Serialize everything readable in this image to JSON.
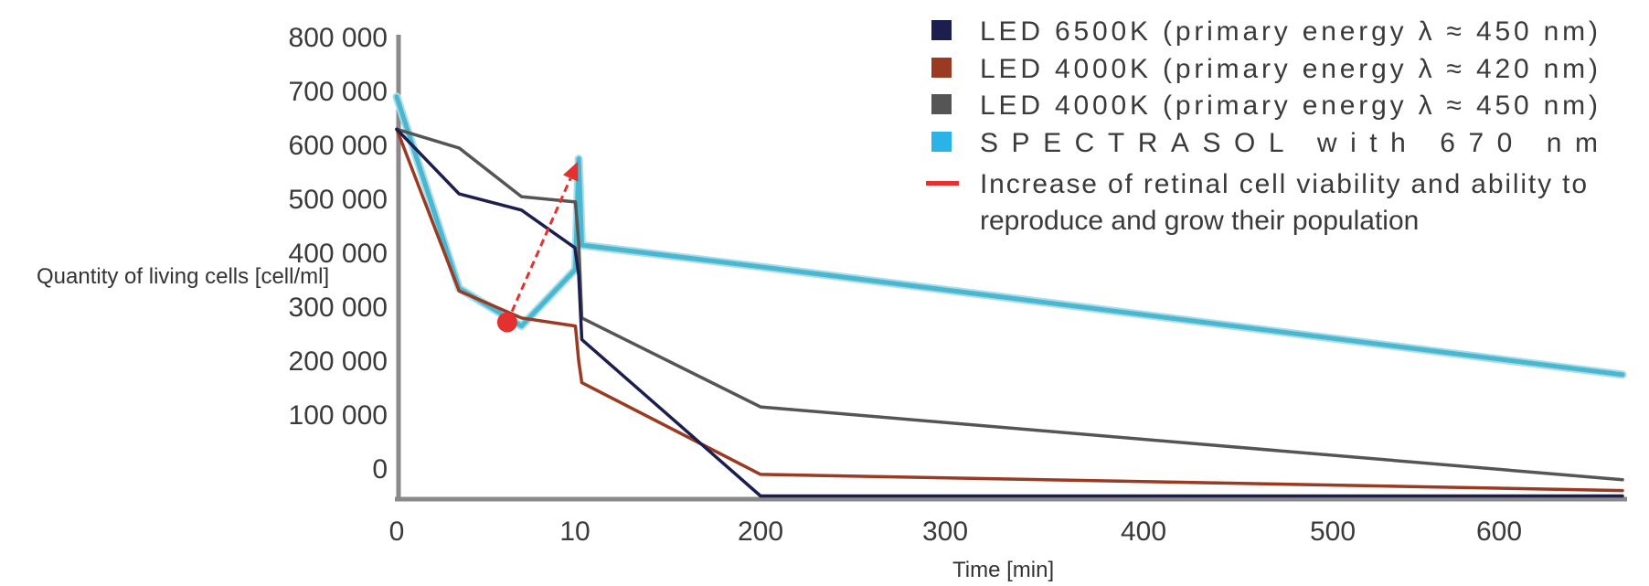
{
  "chart_data": {
    "type": "line",
    "ylabel": "Quantity of living cells [cell/ml]",
    "xlabel": "Time [min]",
    "x_ticks": [
      "0",
      "10",
      "200",
      "300",
      "400",
      "500",
      "600"
    ],
    "y_ticks": [
      "800 000",
      "700 000",
      "600 000",
      "500 000",
      "400 000",
      "300 000",
      "200 000",
      "100 000",
      "0"
    ],
    "ylim": [
      -50000,
      830000
    ],
    "series": [
      {
        "name": "LED 6500K (primary energy λ ≈ 450 nm)",
        "color": "#1c1f4e",
        "points": [
          [
            0,
            630000
          ],
          [
            3.5,
            510000
          ],
          [
            7,
            480000
          ],
          [
            10,
            410000
          ],
          [
            13.8,
            360000
          ],
          [
            17,
            240000
          ],
          [
            200,
            -50000
          ],
          [
            665,
            -50000
          ]
        ]
      },
      {
        "name": "LED 4000K (primary energy λ ≈ 420 nm)",
        "color": "#9a3a22",
        "points": [
          [
            0,
            630000
          ],
          [
            3.5,
            330000
          ],
          [
            7,
            280000
          ],
          [
            10.5,
            265000
          ],
          [
            13.8,
            200000
          ],
          [
            17,
            160000
          ],
          [
            200,
            -10000
          ],
          [
            665,
            -40000
          ]
        ]
      },
      {
        "name": "LED 4000K (primary energy λ ≈ 450 nm)",
        "color": "#555555",
        "points": [
          [
            0,
            630000
          ],
          [
            3.5,
            595000
          ],
          [
            7,
            505000
          ],
          [
            10.5,
            495000
          ],
          [
            13.8,
            420000
          ],
          [
            17,
            280000
          ],
          [
            200,
            115000
          ],
          [
            665,
            -20000
          ]
        ]
      },
      {
        "name": "SPECTRASOL with 670 nm",
        "color": "#4bb6cf",
        "points": [
          [
            0,
            690000
          ],
          [
            3.5,
            335000
          ],
          [
            7,
            265000
          ],
          [
            10.5,
            370000
          ],
          [
            13.8,
            575000
          ],
          [
            17,
            415000
          ],
          [
            200,
            375000
          ],
          [
            665,
            175000
          ]
        ]
      }
    ],
    "annotation": {
      "label": "Increase of retinal cell viability and ability to reproduce and grow their population",
      "color": "#e53030",
      "from": [
        6.2,
        272000
      ],
      "to": [
        13,
        570000
      ]
    },
    "legend": {
      "placement": "top-right",
      "entries": [
        {
          "label": "LED 6500K (primary energy λ ≈ 450 nm)",
          "color": "#1c1f4e",
          "kind": "square"
        },
        {
          "label": "LED 4000K (primary energy λ ≈ 420 nm)",
          "color": "#9a3a22",
          "kind": "square"
        },
        {
          "label": "LED 4000K (primary energy λ ≈ 450 nm)",
          "color": "#555555",
          "kind": "square"
        },
        {
          "label": "SPECTRASOL with 670 nm",
          "color": "#29b3e6",
          "kind": "square"
        },
        {
          "label_lines": [
            "Increase of retinal cell viability and ability to",
            "reproduce and grow their population"
          ],
          "color": "#e53030",
          "kind": "dash"
        }
      ]
    }
  }
}
